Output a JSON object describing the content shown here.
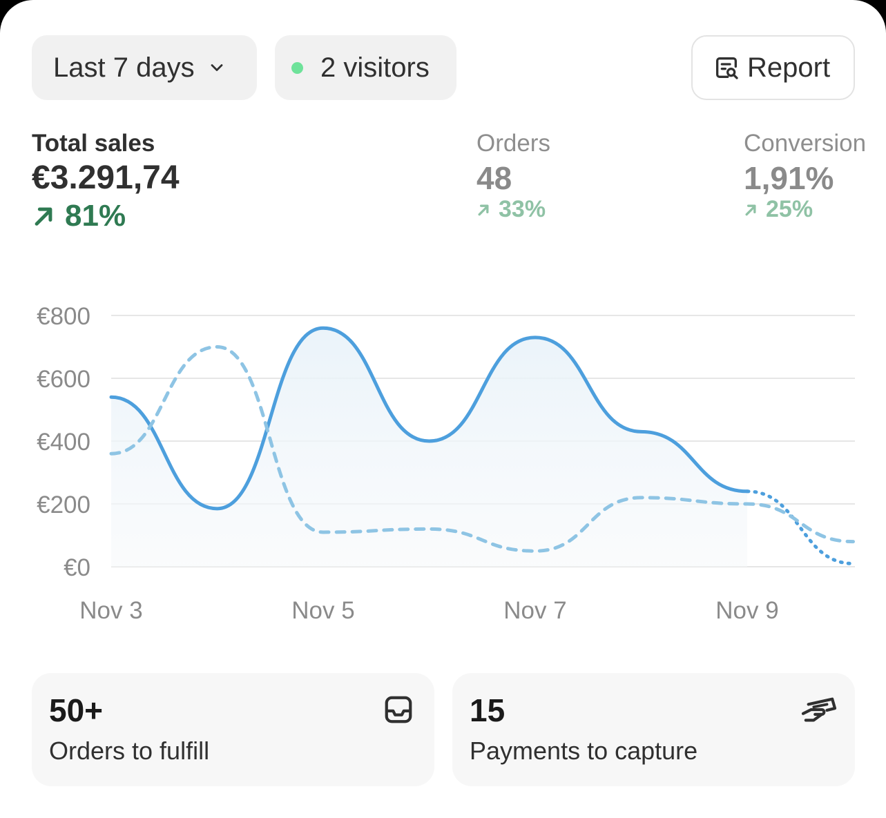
{
  "filters": {
    "date_range": "Last 7 days",
    "visitors": "2 visitors",
    "report_label": "Report"
  },
  "metrics": [
    {
      "label": "Total sales",
      "value": "€3.291,74",
      "change": "81%",
      "active": true
    },
    {
      "label": "Orders",
      "value": "48",
      "change": "33%",
      "active": false
    },
    {
      "label": "Conversion",
      "value": "1,91%",
      "change": "25%",
      "active": false
    }
  ],
  "chart_data": {
    "type": "line",
    "title": "",
    "xlabel": "",
    "ylabel": "",
    "y_ticks": [
      "€0",
      "€200",
      "€400",
      "€600",
      "€800"
    ],
    "x_ticks": [
      "Nov 3",
      "Nov 5",
      "Nov 7",
      "Nov 9"
    ],
    "ylim": [
      0,
      800
    ],
    "grid": true,
    "legend": "none",
    "series": [
      {
        "style": "solid",
        "color": "#4d9fdd",
        "points": [
          [
            "Nov 3",
            540
          ],
          [
            "Nov 4",
            185
          ],
          [
            "Nov 5",
            760
          ],
          [
            "Nov 6",
            400
          ],
          [
            "Nov 7",
            730
          ],
          [
            "Nov 8",
            430
          ],
          [
            "Nov 9",
            240
          ],
          [
            "Nov 10",
            10
          ]
        ],
        "dotted_after": "Nov 9"
      },
      {
        "style": "dashed",
        "color": "#8ec4e4",
        "points": [
          [
            "Nov 3",
            360
          ],
          [
            "Nov 4",
            700
          ],
          [
            "Nov 5",
            110
          ],
          [
            "Nov 6",
            120
          ],
          [
            "Nov 7",
            50
          ],
          [
            "Nov 8",
            220
          ],
          [
            "Nov 9",
            200
          ],
          [
            "Nov 10",
            80
          ]
        ]
      }
    ]
  },
  "tiles": [
    {
      "value": "50+",
      "label": "Orders to fulfill",
      "icon": "inbox-icon"
    },
    {
      "value": "15",
      "label": "Payments to capture",
      "icon": "payment-hand-icon"
    }
  ]
}
